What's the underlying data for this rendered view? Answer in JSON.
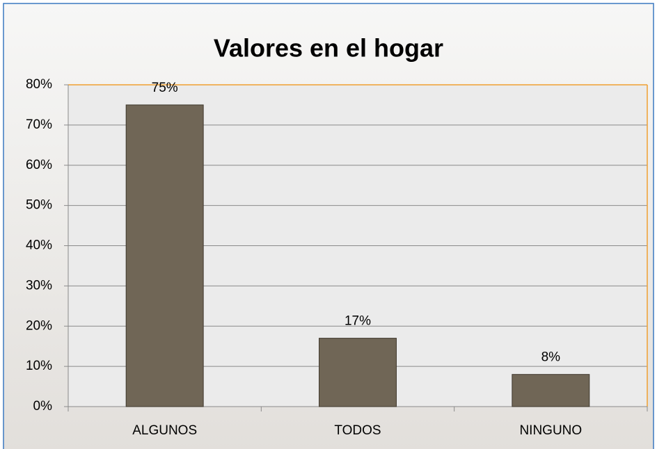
{
  "chart_data": {
    "type": "bar",
    "title": "Valores en el hogar",
    "categories": [
      "ALGUNOS",
      "TODOS",
      "NINGUNO"
    ],
    "values": [
      75,
      17,
      8
    ],
    "value_labels": [
      "75%",
      "17%",
      "8%"
    ],
    "color": "#706656",
    "ylim": [
      0,
      80
    ],
    "yticks": [
      {
        "value": 0,
        "label": "0%"
      },
      {
        "value": 10,
        "label": "10%"
      },
      {
        "value": 20,
        "label": "20%"
      },
      {
        "value": 30,
        "label": "30%"
      },
      {
        "value": 40,
        "label": "40%"
      },
      {
        "value": 50,
        "label": "50%"
      },
      {
        "value": 60,
        "label": "60%"
      },
      {
        "value": 70,
        "label": "70%"
      },
      {
        "value": 80,
        "label": "80%"
      }
    ],
    "grid": true
  }
}
